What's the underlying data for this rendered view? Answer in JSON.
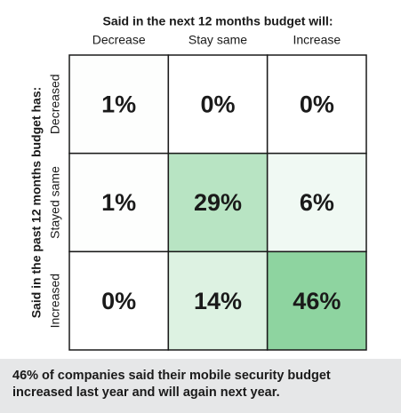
{
  "chart_data": {
    "type": "heatmap",
    "title": "Said in the next 12 months budget will:",
    "y_title": "Said in the past 12 months budget has:",
    "x_categories": [
      "Decrease",
      "Stay same",
      "Increase"
    ],
    "y_categories": [
      "Decreased",
      "Stayed same",
      "Increased"
    ],
    "values": [
      [
        1,
        0,
        0
      ],
      [
        1,
        29,
        6
      ],
      [
        0,
        14,
        46
      ]
    ],
    "value_labels": [
      [
        "1%",
        "0%",
        "0%"
      ],
      [
        "1%",
        "29%",
        "6%"
      ],
      [
        "0%",
        "14%",
        "46%"
      ]
    ],
    "colormap": [
      "#ffffff",
      "#8ed4a0"
    ],
    "annotation": "46% of companies said their mobile security budget increased last year and will again next year."
  }
}
